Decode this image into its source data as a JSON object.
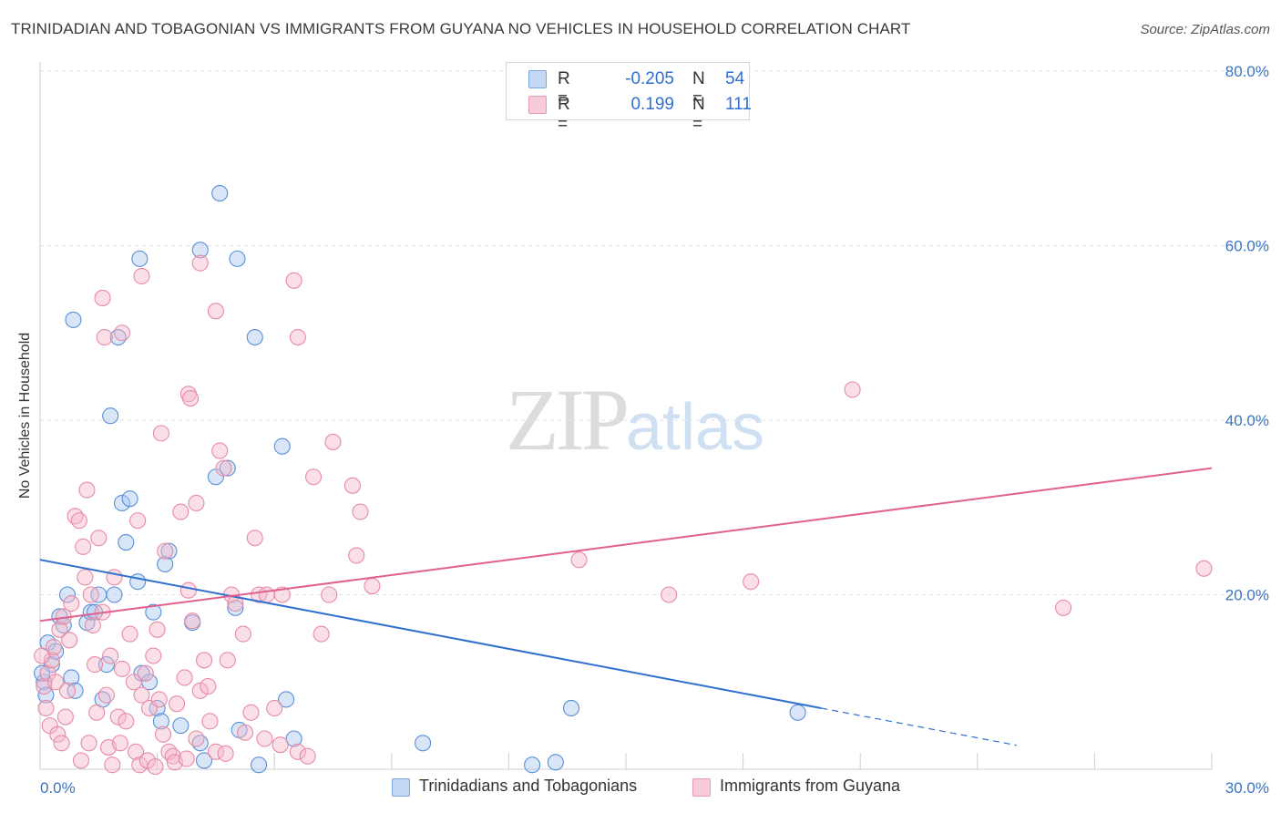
{
  "title": "TRINIDADIAN AND TOBAGONIAN VS IMMIGRANTS FROM GUYANA NO VEHICLES IN HOUSEHOLD CORRELATION CHART",
  "source": "Source: ZipAtlas.com",
  "watermark": {
    "a": "ZIP",
    "b": "atlas"
  },
  "legend": {
    "series1": {
      "r_label": "R =",
      "r_value": "-0.205",
      "n_label": "N =",
      "n_value": "54"
    },
    "series2": {
      "r_label": "R =",
      "r_value": " 0.199",
      "n_label": "N =",
      "n_value": "111"
    }
  },
  "colors": {
    "blue_fill": "#a8c8f0",
    "blue_stroke": "#5a8fd6",
    "blue_line": "#2f6fcf",
    "pink_fill": "#f5b8ca",
    "pink_stroke": "#e88aa6",
    "pink_line": "#e06090",
    "tick_label": "#3a74c4",
    "grid": "#e0e0e0"
  },
  "chart_data": {
    "type": "scatter",
    "title": "TRINIDADIAN AND TOBAGONIAN VS IMMIGRANTS FROM GUYANA NO VEHICLES IN HOUSEHOLD CORRELATION CHART",
    "xlabel": "",
    "ylabel": "No Vehicles in Household",
    "xlim": [
      0,
      30
    ],
    "ylim": [
      0,
      80
    ],
    "x_tick_labels": [
      "0.0%",
      "30.0%"
    ],
    "y_ticks": [
      20,
      40,
      60,
      80
    ],
    "y_tick_labels": [
      "20.0%",
      "40.0%",
      "60.0%",
      "80.0%"
    ],
    "grid": true,
    "legend_position": "bottom",
    "series": [
      {
        "name": "Trinidadians and Tobagonians",
        "color": "#a8c8f0",
        "points": [
          [
            0.2,
            14.5
          ],
          [
            0.3,
            12
          ],
          [
            0.1,
            10
          ],
          [
            0.4,
            13.5
          ],
          [
            0.5,
            17.5
          ],
          [
            0.6,
            16.5
          ],
          [
            0.7,
            20
          ],
          [
            0.8,
            10.5
          ],
          [
            0.9,
            9
          ],
          [
            1.2,
            16.8
          ],
          [
            1.3,
            18
          ],
          [
            1.4,
            18
          ],
          [
            1.5,
            20
          ],
          [
            1.6,
            8
          ],
          [
            1.7,
            12
          ],
          [
            1.9,
            20
          ],
          [
            2.1,
            30.5
          ],
          [
            2.2,
            26
          ],
          [
            2.3,
            31
          ],
          [
            2.5,
            21.5
          ],
          [
            2.6,
            11
          ],
          [
            2.8,
            10
          ],
          [
            2.9,
            18
          ],
          [
            3.0,
            7
          ],
          [
            3.1,
            5.5
          ],
          [
            3.2,
            23.5
          ],
          [
            3.3,
            25
          ],
          [
            3.6,
            5
          ],
          [
            3.9,
            16.8
          ],
          [
            4.1,
            3
          ],
          [
            4.2,
            1
          ],
          [
            4.5,
            33.5
          ],
          [
            4.8,
            34.5
          ],
          [
            5.0,
            18.5
          ],
          [
            5.1,
            4.5
          ],
          [
            5.6,
            0.5
          ],
          [
            6.3,
            8
          ],
          [
            6.5,
            3.5
          ],
          [
            0.85,
            51.5
          ],
          [
            2.0,
            49.5
          ],
          [
            1.8,
            40.5
          ],
          [
            2.55,
            58.5
          ],
          [
            4.1,
            59.5
          ],
          [
            4.6,
            66
          ],
          [
            5.05,
            58.5
          ],
          [
            5.5,
            49.5
          ],
          [
            6.2,
            37
          ],
          [
            9.8,
            3
          ],
          [
            12.6,
            0.5
          ],
          [
            13.2,
            0.8
          ],
          [
            13.6,
            7
          ],
          [
            19.4,
            6.5
          ],
          [
            0.05,
            11
          ],
          [
            0.15,
            8.5
          ]
        ]
      },
      {
        "name": "Immigrants from Guyana",
        "color": "#f5b8ca",
        "points": [
          [
            0.1,
            9.5
          ],
          [
            0.2,
            11
          ],
          [
            0.3,
            12.5
          ],
          [
            0.35,
            14
          ],
          [
            0.4,
            10
          ],
          [
            0.5,
            16
          ],
          [
            0.6,
            17.5
          ],
          [
            0.7,
            9
          ],
          [
            0.75,
            14.8
          ],
          [
            0.8,
            19
          ],
          [
            0.9,
            29
          ],
          [
            1.0,
            28.5
          ],
          [
            1.1,
            25.5
          ],
          [
            1.15,
            22
          ],
          [
            1.2,
            32
          ],
          [
            1.3,
            20
          ],
          [
            1.35,
            16.5
          ],
          [
            1.4,
            12
          ],
          [
            1.5,
            26.5
          ],
          [
            1.6,
            18
          ],
          [
            1.7,
            8.5
          ],
          [
            1.8,
            13
          ],
          [
            1.9,
            22
          ],
          [
            2.0,
            6
          ],
          [
            2.1,
            11.5
          ],
          [
            2.2,
            5.5
          ],
          [
            2.3,
            15.5
          ],
          [
            2.4,
            10
          ],
          [
            2.5,
            28.5
          ],
          [
            2.6,
            8.5
          ],
          [
            2.7,
            11
          ],
          [
            2.8,
            7
          ],
          [
            2.9,
            13
          ],
          [
            3.0,
            16
          ],
          [
            3.05,
            8
          ],
          [
            3.1,
            38.5
          ],
          [
            3.2,
            25
          ],
          [
            3.3,
            2
          ],
          [
            3.4,
            1.5
          ],
          [
            3.5,
            7.5
          ],
          [
            3.6,
            29.5
          ],
          [
            3.7,
            10.5
          ],
          [
            3.8,
            20.5
          ],
          [
            3.9,
            17
          ],
          [
            4.0,
            3.5
          ],
          [
            4.1,
            9
          ],
          [
            4.2,
            12.5
          ],
          [
            4.3,
            9.5
          ],
          [
            4.5,
            2
          ],
          [
            4.6,
            36.5
          ],
          [
            4.7,
            34.5
          ],
          [
            4.8,
            12.5
          ],
          [
            4.9,
            20
          ],
          [
            5.0,
            19
          ],
          [
            5.2,
            15.5
          ],
          [
            5.4,
            6.5
          ],
          [
            5.5,
            26.5
          ],
          [
            5.6,
            20
          ],
          [
            5.8,
            20
          ],
          [
            6.0,
            7
          ],
          [
            6.2,
            20
          ],
          [
            6.6,
            2
          ],
          [
            7.0,
            33.5
          ],
          [
            7.2,
            15.5
          ],
          [
            7.4,
            20
          ],
          [
            7.5,
            37.5
          ],
          [
            8.0,
            32.5
          ],
          [
            8.2,
            29.5
          ],
          [
            8.1,
            24.5
          ],
          [
            8.5,
            21
          ],
          [
            1.65,
            49.5
          ],
          [
            2.1,
            50
          ],
          [
            1.6,
            54
          ],
          [
            2.6,
            56.5
          ],
          [
            4.1,
            58
          ],
          [
            4.5,
            52.5
          ],
          [
            6.5,
            56
          ],
          [
            6.6,
            49.5
          ],
          [
            3.8,
            43
          ],
          [
            3.85,
            42.5
          ],
          [
            4.0,
            30.5
          ],
          [
            13.8,
            24
          ],
          [
            16.1,
            20
          ],
          [
            18.2,
            21.5
          ],
          [
            20.8,
            43.5
          ],
          [
            26.2,
            18.5
          ],
          [
            29.8,
            23
          ],
          [
            0.15,
            7
          ],
          [
            0.25,
            5
          ],
          [
            0.45,
            4
          ],
          [
            0.55,
            3
          ],
          [
            0.65,
            6
          ],
          [
            1.05,
            1
          ],
          [
            1.25,
            3
          ],
          [
            1.45,
            6.5
          ],
          [
            1.75,
            2.5
          ],
          [
            1.85,
            0.5
          ],
          [
            2.05,
            3
          ],
          [
            2.45,
            2
          ],
          [
            2.55,
            0.5
          ],
          [
            2.75,
            1
          ],
          [
            2.95,
            0.3
          ],
          [
            3.15,
            4
          ],
          [
            3.45,
            0.8
          ],
          [
            3.75,
            1.2
          ],
          [
            4.35,
            5.5
          ],
          [
            4.75,
            1.8
          ],
          [
            5.25,
            4.2
          ],
          [
            5.75,
            3.5
          ],
          [
            6.15,
            2.8
          ],
          [
            6.85,
            1.5
          ],
          [
            0.05,
            13
          ]
        ]
      }
    ],
    "trend_lines": [
      {
        "series": "Trinidadians and Tobagonians",
        "x": [
          0,
          30
        ],
        "y": [
          24,
          -1.5
        ],
        "solid_to_x": 20
      },
      {
        "series": "Immigrants from Guyana",
        "x": [
          0,
          30
        ],
        "y": [
          17,
          34.5
        ]
      }
    ]
  },
  "bottom_legend": [
    "Trinidadians and Tobagonians",
    "Immigrants from Guyana"
  ]
}
